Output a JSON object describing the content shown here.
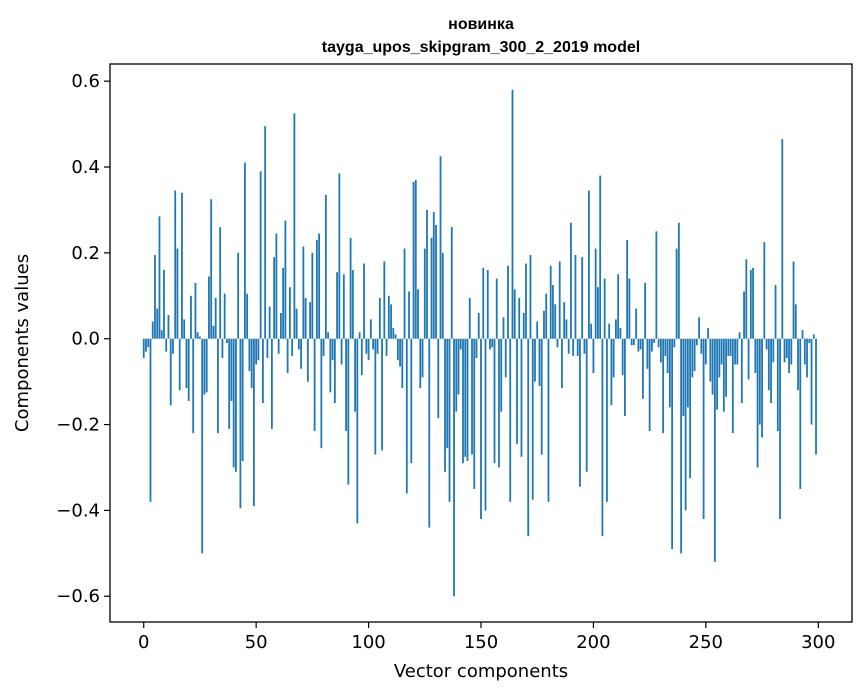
{
  "chart_data": {
    "type": "bar",
    "title": "новинка",
    "subtitle": "tayga_upos_skipgram_300_2_2019 model",
    "xlabel": "Vector components",
    "ylabel": "Components values",
    "xlim": [
      -15,
      315
    ],
    "ylim": [
      -0.66,
      0.64
    ],
    "x_ticks": [
      0,
      50,
      100,
      150,
      200,
      250,
      300
    ],
    "y_ticks": [
      -0.6,
      -0.4,
      -0.2,
      0.0,
      0.2,
      0.4,
      0.6
    ],
    "x_tick_labels": [
      "0",
      "50",
      "100",
      "150",
      "200",
      "250",
      "300"
    ],
    "y_tick_labels": [
      "−0.6",
      "−0.4",
      "−0.2",
      "0.0",
      "0.2",
      "0.4",
      "0.6"
    ],
    "bar_color": "#1f77b4",
    "grid": false,
    "series": [
      {
        "name": "новинка",
        "values": [
          -0.045,
          -0.03,
          -0.02,
          -0.38,
          0.04,
          0.195,
          0.07,
          0.285,
          0.02,
          0.16,
          -0.03,
          0.055,
          -0.155,
          -0.035,
          0.345,
          0.21,
          -0.12,
          0.34,
          0.045,
          -0.115,
          -0.145,
          0.1,
          -0.22,
          0.13,
          0.015,
          0.005,
          -0.5,
          -0.13,
          -0.125,
          0.145,
          0.325,
          0.03,
          0.095,
          -0.22,
          0.26,
          -0.045,
          0.105,
          -0.01,
          -0.21,
          -0.145,
          -0.3,
          -0.31,
          0.2,
          -0.395,
          -0.285,
          0.41,
          0.105,
          -0.075,
          -0.115,
          -0.39,
          -0.06,
          -0.05,
          0.39,
          -0.15,
          0.495,
          -0.045,
          0.075,
          -0.21,
          0.19,
          0.245,
          -0.035,
          0.06,
          0.165,
          0.275,
          -0.08,
          0.12,
          -0.04,
          0.525,
          0.07,
          -0.025,
          -0.07,
          0.215,
          0.095,
          -0.1,
          0.085,
          0.2,
          -0.215,
          0.23,
          0.245,
          -0.255,
          -0.04,
          0.335,
          0.015,
          -0.125,
          -0.05,
          -0.15,
          0.155,
          0.385,
          -0.06,
          0.15,
          -0.215,
          -0.34,
          0.235,
          0.16,
          -0.17,
          -0.43,
          0.015,
          -0.085,
          0.175,
          -0.035,
          -0.05,
          0.045,
          -0.025,
          -0.27,
          -0.035,
          0.095,
          -0.26,
          0.18,
          -0.04,
          0.1,
          0.08,
          0.025,
          0.01,
          -0.05,
          -0.065,
          -0.115,
          0.21,
          -0.36,
          0.11,
          -0.29,
          0.365,
          0.37,
          0.115,
          -0.115,
          -0.09,
          0.21,
          0.3,
          -0.44,
          0.235,
          0.295,
          0.265,
          -0.185,
          0.425,
          0.2,
          -0.31,
          -0.255,
          -0.38,
          0.26,
          -0.6,
          -0.17,
          -0.13,
          -0.025,
          -0.29,
          -0.275,
          -0.285,
          0.095,
          -0.27,
          -0.35,
          -0.045,
          0.06,
          -0.42,
          0.165,
          -0.4,
          0.16,
          -0.025,
          -0.02,
          -0.29,
          0.14,
          -0.3,
          -0.17,
          0.05,
          -0.09,
          0.17,
          -0.38,
          0.58,
          0.115,
          -0.245,
          0.095,
          -0.275,
          0.06,
          0.175,
          -0.46,
          0.195,
          -0.375,
          -0.1,
          0.04,
          -0.11,
          -0.27,
          0.065,
          0.105,
          -0.38,
          0.17,
          0.125,
          0.08,
          -0.02,
          0.18,
          -0.115,
          0.085,
          0.045,
          -0.035,
          0.27,
          -0.04,
          0.195,
          -0.04,
          -0.345,
          0.19,
          -0.035,
          -0.31,
          0.345,
          0.035,
          -0.08,
          0.21,
          0.12,
          0.38,
          -0.46,
          0.14,
          -0.38,
          0.035,
          -0.155,
          -0.09,
          0.045,
          0.15,
          0.025,
          -0.085,
          -0.18,
          0.23,
          0.14,
          -0.015,
          -0.015,
          0.07,
          -0.03,
          -0.025,
          -0.14,
          0.13,
          -0.07,
          -0.215,
          -0.03,
          -0.01,
          0.25,
          -0.02,
          -0.055,
          -0.22,
          -0.04,
          -0.08,
          -0.16,
          -0.49,
          -0.02,
          0.21,
          0.27,
          -0.5,
          -0.18,
          -0.4,
          -0.16,
          -0.325,
          -0.09,
          -0.075,
          -0.015,
          0.05,
          -0.035,
          -0.42,
          -0.06,
          0.025,
          -0.1,
          -0.13,
          -0.52,
          -0.165,
          -0.09,
          -0.06,
          -0.17,
          -0.135,
          -0.04,
          -0.04,
          -0.22,
          -0.06,
          -0.06,
          0.015,
          -0.15,
          0.11,
          0.185,
          -0.095,
          0.16,
          0.165,
          -0.08,
          -0.3,
          -0.2,
          -0.23,
          0.225,
          -0.025,
          -0.12,
          -0.15,
          -0.055,
          0.125,
          -0.215,
          -0.42,
          0.465,
          -0.055,
          -0.045,
          -0.08,
          -0.06,
          0.18,
          0.08,
          -0.12,
          -0.35,
          0.02,
          -0.06,
          -0.09,
          -0.01,
          -0.2,
          0.01,
          -0.27
        ]
      }
    ]
  }
}
